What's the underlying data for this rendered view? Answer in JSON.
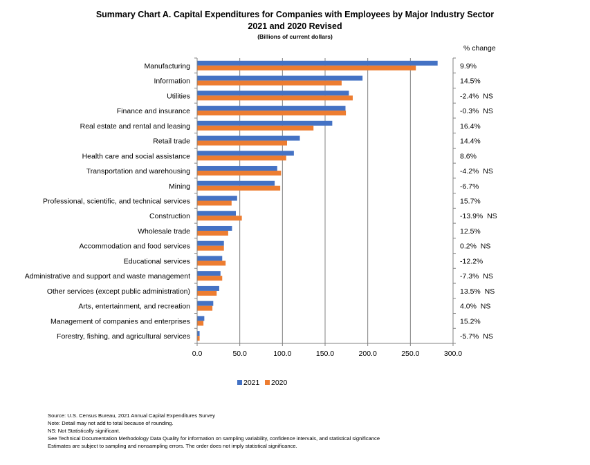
{
  "title": "Summary Chart A. Capital Expenditures for Companies with Employees by Major Industry Sector",
  "subtitle": "2021 and 2020 Revised",
  "units": "(Billions of current dollars)",
  "change_header": "% change",
  "colors": {
    "s2021": "#4472C4",
    "s2020": "#ED7D31",
    "grid": "#808080",
    "axis": "#808080"
  },
  "chart_data": {
    "type": "bar",
    "orientation": "horizontal",
    "title": "Summary Chart A. Capital Expenditures for Companies with Employees by Major Industry Sector",
    "subtitle": "2021 and 2020 Revised",
    "xlabel": "(Billions of current dollars)",
    "xlim": [
      0,
      300
    ],
    "xticks": [
      0,
      50,
      100,
      150,
      200,
      250,
      300
    ],
    "xtick_labels": [
      "0.0",
      "50.0",
      "100.0",
      "150.0",
      "200.0",
      "250.0",
      "300.0"
    ],
    "grid": true,
    "legend": "bottom",
    "categories": [
      "Manufacturing",
      "Information",
      "Utilities",
      "Finance and insurance",
      "Real estate and rental and leasing",
      "Retail trade",
      "Health care and social assistance",
      "Transportation and warehousing",
      "Mining",
      "Professional, scientific, and technical services",
      "Construction",
      "Wholesale trade",
      "Accommodation and food services",
      "Educational services",
      "Administrative and support and waste management",
      "Other services (except public administration)",
      "Arts, entertainment, and recreation",
      "Management of companies and enterprises",
      "Forestry, fishing, and agricultural services"
    ],
    "series": [
      {
        "name": "2021",
        "values": [
          281.5,
          193.5,
          177.5,
          173.5,
          158.0,
          120.0,
          113.0,
          93.5,
          90.5,
          46.5,
          45.0,
          40.5,
          31.0,
          29.0,
          27.0,
          25.5,
          18.5,
          8.0,
          2.5
        ]
      },
      {
        "name": "2020",
        "values": [
          256.0,
          169.0,
          182.0,
          174.0,
          136.0,
          105.0,
          104.0,
          98.0,
          97.0,
          40.0,
          52.0,
          36.0,
          31.0,
          33.0,
          29.0,
          22.5,
          17.5,
          7.0,
          2.5
        ]
      }
    ],
    "pct_change": [
      "9.9%",
      "14.5%",
      "-2.4%  NS",
      "-0.3%  NS",
      "16.4%",
      "14.4%",
      "8.6%",
      "-4.2%  NS",
      "-6.7%",
      "15.7%",
      "-13.9%  NS",
      "12.5%",
      "0.2%  NS",
      "-12.2%",
      "-7.3%  NS",
      "13.5%  NS",
      "4.0%  NS",
      "15.2%",
      "-5.7%  NS"
    ]
  },
  "notes": [
    "Source: U.S. Census Bureau, 2021 Annual Capital Expenditures Survey",
    "Note: Detail may not add to total because of rounding.",
    "NS: Not Statistically significant.",
    "See Technical Documentation Methodology Data Quality for information on sampling variability, confidence intervals, and statistical significance",
    "Estimates are subject to sampling and nonsampling errors.  The order does not imply statistical significance."
  ]
}
